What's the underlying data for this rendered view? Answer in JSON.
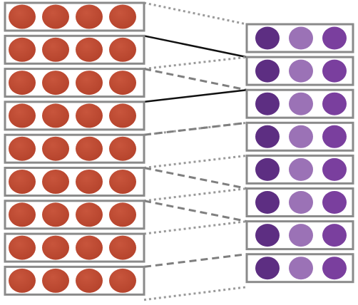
{
  "colors": {
    "background": "#ffffff",
    "box_border": "#8a8a8a",
    "left_circle": "#b5432c",
    "left_circle_highlight": "#c8553c",
    "right_circle_dark": "#5d2e82",
    "right_circle_light": "#9b72b6",
    "right_circle_mid": "#7a3f9e",
    "solid_connector": "#111111",
    "dashed_connector": "#7f7f7f",
    "dotted_connector": "#9a9a9a"
  },
  "left_column": {
    "row_count": 9,
    "circles_per_row": 4,
    "circle_color_keys": [
      "left_circle",
      "left_circle",
      "left_circle",
      "left_circle"
    ]
  },
  "right_column": {
    "row_count": 8,
    "circles_per_row": 3,
    "circle_color_keys": [
      "right_circle_dark",
      "right_circle_light",
      "right_circle_mid"
    ]
  },
  "connectors": [
    {
      "from": "left-top-0",
      "to": "right-top-0",
      "style": "dotted"
    },
    {
      "from": "left-top-1",
      "to": "right-top-1",
      "style": "solid"
    },
    {
      "from": "left-top-2",
      "to": "right-top-1",
      "style": "dotted"
    },
    {
      "from": "left-top-2",
      "to": "right-top-2",
      "style": "dashed"
    },
    {
      "from": "left-top-3",
      "to": "right-top-2",
      "style": "solid"
    },
    {
      "from": "left-top-4",
      "to": "right-top-3",
      "style": "dotted"
    },
    {
      "from": "left-top-4",
      "to": "right-top-3",
      "style": "dashed"
    },
    {
      "from": "left-top-5",
      "to": "right-top-4",
      "style": "dotted"
    },
    {
      "from": "left-top-5",
      "to": "right-top-5",
      "style": "dashed"
    },
    {
      "from": "left-top-6",
      "to": "right-top-5",
      "style": "dotted"
    },
    {
      "from": "left-top-6",
      "to": "right-top-6",
      "style": "dashed"
    },
    {
      "from": "left-top-7",
      "to": "right-top-6",
      "style": "dotted"
    },
    {
      "from": "left-top-8",
      "to": "right-top-7",
      "style": "dashed"
    },
    {
      "from": "left-top-9",
      "to": "right-top-8",
      "style": "dotted"
    }
  ]
}
